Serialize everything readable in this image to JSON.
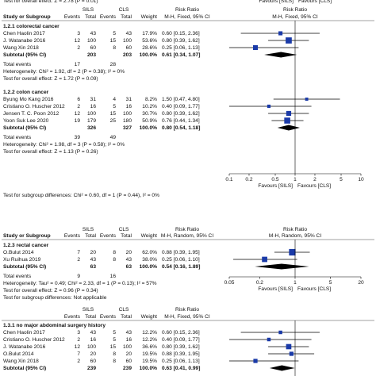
{
  "panels": [
    {
      "cut_note": "Test for overall effect: Z = 2.78 (P = 0.01)",
      "top_favours": [
        "Favours [SILS]",
        "Favours [CLS]"
      ],
      "header": {
        "study": "Study or Subgroup",
        "g1": "SILS",
        "g2": "CLS",
        "events": "Events",
        "total": "Total",
        "weight": "Weight",
        "rr_title": "Risk Ratio",
        "rr_method": "M-H, Fixed, 95% CI",
        "plot_title": "Risk Ratio",
        "plot_method": "M-H, Fixed, 95% CI"
      },
      "groups": [
        {
          "title": "1.2.1 colorectal cancer",
          "studies": [
            {
              "name": "Chen Haolin 2017",
              "e1": 3,
              "n1": 43,
              "e2": 5,
              "n2": 43,
              "weight": {
                "value": 17.9,
                "label": "17.9%"
              },
              "ci": {
                "label": "0.60 [0.15, 2.36]",
                "rr": 0.6,
                "lo": 0.15,
                "hi": 2.36
              }
            },
            {
              "name": "J. Watanabe 2016",
              "e1": 12,
              "n1": 100,
              "e2": 15,
              "n2": 100,
              "weight": {
                "value": 53.6,
                "label": "53.6%"
              },
              "ci": {
                "label": "0.80 [0.39, 1.62]",
                "rr": 0.8,
                "lo": 0.39,
                "hi": 1.62
              }
            },
            {
              "name": "Wang Xin 2018",
              "e1": 2,
              "n1": 60,
              "e2": 8,
              "n2": 60,
              "weight": {
                "value": 28.6,
                "label": "28.6%"
              },
              "ci": {
                "label": "0.25 [0.06, 1.13]",
                "rr": 0.25,
                "lo": 0.06,
                "hi": 1.13
              }
            }
          ],
          "subtotal": {
            "label": "Subtotal (95% CI)",
            "n1": 203,
            "n2": 203,
            "weight": "100.0%",
            "ci": {
              "label": "0.61 [0.34, 1.07]",
              "rr": 0.61,
              "lo": 0.34,
              "hi": 1.07
            }
          },
          "total": {
            "label": "Total events",
            "e1": 17,
            "e2": 28
          },
          "heterogeneity": "Heterogeneity: Chi² = 1.92, df = 2 (P = 0.38); I² = 0%",
          "overall": "Test for overall effect: Z = 1.72 (P = 0.09)"
        },
        {
          "title": "1.2.2 colon cancer",
          "studies": [
            {
              "name": "Byung Mo Kang 2016",
              "e1": 6,
              "n1": 31,
              "e2": 4,
              "n2": 31,
              "weight": {
                "value": 8.2,
                "label": "8.2%"
              },
              "ci": {
                "label": "1.50 [0.47, 4.80]",
                "rr": 1.5,
                "lo": 0.47,
                "hi": 4.8
              }
            },
            {
              "name": "Cristiano O. Huscher 2012",
              "e1": 2,
              "n1": 16,
              "e2": 5,
              "n2": 16,
              "weight": {
                "value": 10.2,
                "label": "10.2%"
              },
              "ci": {
                "label": "0.40 [0.09, 1.77]",
                "rr": 0.4,
                "lo": 0.09,
                "hi": 1.77
              }
            },
            {
              "name": "Jensen T. C. Poon 2012",
              "e1": 12,
              "n1": 100,
              "e2": 15,
              "n2": 100,
              "weight": {
                "value": 30.7,
                "label": "30.7%"
              },
              "ci": {
                "label": "0.80 [0.39, 1.62]",
                "rr": 0.8,
                "lo": 0.39,
                "hi": 1.62
              }
            },
            {
              "name": "Yoon Suk Lee 2020",
              "e1": 19,
              "n1": 179,
              "e2": 25,
              "n2": 180,
              "weight": {
                "value": 50.9,
                "label": "50.9%"
              },
              "ci": {
                "label": "0.76 [0.44, 1.34]",
                "rr": 0.76,
                "lo": 0.44,
                "hi": 1.34
              }
            }
          ],
          "subtotal": {
            "label": "Subtotal (95% CI)",
            "n1": 326,
            "n2": 327,
            "weight": "100.0%",
            "ci": {
              "label": "0.80 [0.54, 1.18]",
              "rr": 0.8,
              "lo": 0.54,
              "hi": 1.18
            }
          },
          "total": {
            "label": "Total events",
            "e1": 39,
            "e2": 49
          },
          "heterogeneity": "Heterogeneity: Chi² = 1.98, df = 3 (P = 0.58); I² = 0%",
          "overall": "Test for overall effect: Z = 1.13 (P = 0.26)"
        }
      ],
      "subgroup_test": "Test for subgroup differences: Chi² = 0.60, df = 1 (P = 0.44), I² = 0%",
      "axis": {
        "xlim": [
          0.1,
          10
        ],
        "xticks": [
          0.1,
          0.2,
          0.5,
          1,
          2,
          5,
          10
        ],
        "left": "Favours [SILS]",
        "right": "Favours [CLS]"
      }
    },
    {
      "header": {
        "study": "Study or Subgroup",
        "g1": "SILS",
        "g2": "CLS",
        "events": "Events",
        "total": "Total",
        "weight": "Weight",
        "rr_title": "Risk Ratio",
        "rr_method": "M-H, Random, 95% CI",
        "plot_title": "Risk Ratio",
        "plot_method": "M-H, Random, 95% CI"
      },
      "groups": [
        {
          "title": "1.2.3 rectal cancer",
          "studies": [
            {
              "name": "O.Bulut 2014",
              "e1": 7,
              "n1": 20,
              "e2": 8,
              "n2": 20,
              "weight": {
                "value": 62.0,
                "label": "62.0%"
              },
              "ci": {
                "label": "0.88 [0.39, 1.95]",
                "rr": 0.88,
                "lo": 0.39,
                "hi": 1.95
              }
            },
            {
              "name": "Xu Ruihua 2019",
              "e1": 2,
              "n1": 43,
              "e2": 8,
              "n2": 43,
              "weight": {
                "value": 38.0,
                "label": "38.0%"
              },
              "ci": {
                "label": "0.25 [0.06, 1.10]",
                "rr": 0.25,
                "lo": 0.06,
                "hi": 1.1
              }
            }
          ],
          "subtotal": {
            "label": "Subtotal (95% CI)",
            "n1": 63,
            "n2": 63,
            "weight": "100.0%",
            "ci": {
              "label": "0.54 [0.16, 1.89]",
              "rr": 0.54,
              "lo": 0.16,
              "hi": 1.89
            }
          },
          "total": {
            "label": "Total events",
            "e1": 9,
            "e2": 16
          },
          "heterogeneity": "Heterogeneity: Tau² = 0.49; Chi² = 2.33, df = 1 (P = 0.13); I² = 57%",
          "overall": "Test for overall effect: Z = 0.96 (P = 0.34)"
        }
      ],
      "subgroup_test": "Test for subgroup differences: Not applicable",
      "axis": {
        "xlim": [
          0.05,
          20
        ],
        "xticks": [
          0.05,
          0.2,
          1,
          5,
          20
        ],
        "left": "Favours [SILS]",
        "right": "Favours [CLS]"
      }
    },
    {
      "header": {
        "g1": "SILS",
        "g2": "CLS",
        "events": "Events",
        "total": "Total",
        "weight": "Weight",
        "rr_title": "Risk Ratio",
        "rr_method": "M-H, Fixed, 95% CI"
      },
      "groups": [
        {
          "title": "1.3.1 no major abdominal surgery history",
          "studies": [
            {
              "name": "Chen Haolin 2017",
              "e1": 3,
              "n1": 43,
              "e2": 5,
              "n2": 43,
              "weight": {
                "value": 12.2,
                "label": "12.2%"
              },
              "ci": {
                "label": "0.60 [0.15, 2.36]",
                "rr": 0.6,
                "lo": 0.15,
                "hi": 2.36
              }
            },
            {
              "name": "Cristiano O. Huscher 2012",
              "e1": 2,
              "n1": 16,
              "e2": 5,
              "n2": 16,
              "weight": {
                "value": 12.2,
                "label": "12.2%"
              },
              "ci": {
                "label": "0.40 [0.09, 1.77]",
                "rr": 0.4,
                "lo": 0.09,
                "hi": 1.77
              }
            },
            {
              "name": "J. Watanabe 2016",
              "e1": 12,
              "n1": 100,
              "e2": 15,
              "n2": 100,
              "weight": {
                "value": 36.6,
                "label": "36.6%"
              },
              "ci": {
                "label": "0.80 [0.39, 1.62]",
                "rr": 0.8,
                "lo": 0.39,
                "hi": 1.62
              }
            },
            {
              "name": "O.Bulut 2014",
              "e1": 7,
              "n1": 20,
              "e2": 8,
              "n2": 20,
              "weight": {
                "value": 19.5,
                "label": "19.5%"
              },
              "ci": {
                "label": "0.88 [0.39, 1.95]",
                "rr": 0.88,
                "lo": 0.39,
                "hi": 1.95
              }
            },
            {
              "name": "Wang Xin 2018",
              "e1": 2,
              "n1": 60,
              "e2": 8,
              "n2": 60,
              "weight": {
                "value": 19.5,
                "label": "19.5%"
              },
              "ci": {
                "label": "0.25 [0.06, 1.13]",
                "rr": 0.25,
                "lo": 0.06,
                "hi": 1.13
              }
            }
          ],
          "subtotal": {
            "label": "Subtotal (95% CI)",
            "n1": 239,
            "n2": 239,
            "weight": "100.0%",
            "ci": {
              "label": "0.63 [0.41, 0.99]",
              "rr": 0.63,
              "lo": 0.41,
              "hi": 0.99
            }
          }
        }
      ],
      "axis": {
        "xlim": [
          0.1,
          10
        ]
      }
    }
  ]
}
